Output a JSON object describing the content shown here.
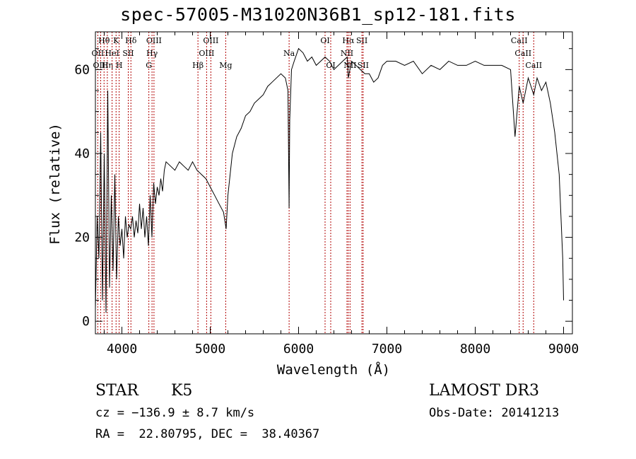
{
  "title": "spec-57005-M31020N36B1_sp12-181.fits",
  "chart_data": {
    "type": "line",
    "xlabel": "Wavelength (Å)",
    "ylabel": "Flux (relative)",
    "xlim": [
      3700,
      9100
    ],
    "ylim": [
      -3,
      69
    ],
    "xticks": [
      4000,
      5000,
      6000,
      7000,
      8000,
      9000
    ],
    "yticks": [
      0,
      20,
      40,
      60
    ],
    "series": [
      {
        "x": [
          3700,
          3720,
          3740,
          3760,
          3780,
          3800,
          3820,
          3840,
          3860,
          3880,
          3900,
          3920,
          3940,
          3960,
          3980,
          4000,
          4020,
          4040,
          4060,
          4080,
          4100,
          4120,
          4140,
          4160,
          4180,
          4200,
          4220,
          4240,
          4260,
          4280,
          4300,
          4320,
          4340,
          4360,
          4380,
          4400,
          4420,
          4440,
          4460,
          4480,
          4500,
          4550,
          4600,
          4650,
          4700,
          4750,
          4800,
          4850,
          4900,
          4950,
          5000,
          5050,
          5100,
          5150,
          5180,
          5200,
          5250,
          5300,
          5350,
          5400,
          5450,
          5500,
          5550,
          5600,
          5650,
          5700,
          5750,
          5800,
          5850,
          5880,
          5893,
          5900,
          5920,
          5950,
          6000,
          6050,
          6100,
          6150,
          6200,
          6250,
          6300,
          6350,
          6400,
          6450,
          6500,
          6550,
          6563,
          6600,
          6650,
          6700,
          6750,
          6800,
          6850,
          6900,
          6950,
          7000,
          7100,
          7200,
          7300,
          7400,
          7500,
          7600,
          7700,
          7800,
          7900,
          8000,
          8100,
          8200,
          8300,
          8400,
          8450,
          8498,
          8542,
          8600,
          8662,
          8700,
          8750,
          8800,
          8850,
          8900,
          8950,
          8970,
          8990,
          9000
        ],
        "y": [
          3,
          25,
          15,
          45,
          5,
          40,
          2,
          55,
          8,
          30,
          12,
          35,
          10,
          25,
          18,
          22,
          15,
          25,
          20,
          23,
          22,
          25,
          20,
          24,
          21,
          28,
          22,
          27,
          20,
          25,
          18,
          30,
          20,
          33,
          28,
          32,
          30,
          34,
          31,
          36,
          38,
          37,
          36,
          38,
          37,
          36,
          38,
          36,
          35,
          34,
          32,
          30,
          28,
          26,
          22,
          30,
          40,
          44,
          46,
          49,
          50,
          52,
          53,
          54,
          56,
          57,
          58,
          59,
          58,
          55,
          27,
          48,
          60,
          62,
          65,
          64,
          62,
          63,
          61,
          62,
          63,
          62,
          60,
          61,
          62,
          63,
          58,
          62,
          61,
          60,
          59,
          59,
          57,
          58,
          61,
          62,
          62,
          61,
          62,
          59,
          61,
          60,
          62,
          61,
          61,
          62,
          61,
          61,
          61,
          60,
          44,
          56,
          52,
          58,
          54,
          58,
          55,
          57,
          52,
          45,
          35,
          25,
          15,
          5
        ]
      }
    ],
    "lines": [
      {
        "label": "Hθ",
        "x": 3798,
        "row": 1
      },
      {
        "label": "OII",
        "x": 3727,
        "row": 2
      },
      {
        "label": "OIII",
        "x": 3760,
        "row": 3
      },
      {
        "label": "Hη",
        "x": 3835,
        "row": 3
      },
      {
        "label": "HeI",
        "x": 3889,
        "row": 2
      },
      {
        "label": "K",
        "x": 3934,
        "row": 1
      },
      {
        "label": "H",
        "x": 3969,
        "row": 3
      },
      {
        "label": "SII",
        "x": 4072,
        "row": 2
      },
      {
        "label": "Hδ",
        "x": 4102,
        "row": 1
      },
      {
        "label": "OIII",
        "x": 4363,
        "row": 1
      },
      {
        "label": "Hγ",
        "x": 4341,
        "row": 2
      },
      {
        "label": "G",
        "x": 4305,
        "row": 3
      },
      {
        "label": "Hβ",
        "x": 4861,
        "row": 3
      },
      {
        "label": "OIII",
        "x": 5007,
        "row": 1
      },
      {
        "label": "OIII",
        "x": 4959,
        "row": 2
      },
      {
        "label": "Mg",
        "x": 5175,
        "row": 3
      },
      {
        "label": "Na",
        "x": 5893,
        "row": 2
      },
      {
        "label": "OI",
        "x": 6300,
        "row": 1
      },
      {
        "label": "OI",
        "x": 6364,
        "row": 3
      },
      {
        "label": "Hα",
        "x": 6563,
        "row": 1
      },
      {
        "label": "NII",
        "x": 6548,
        "row": 2
      },
      {
        "label": "NII",
        "x": 6583,
        "row": 3
      },
      {
        "label": "SII",
        "x": 6717,
        "row": 1
      },
      {
        "label": "SII",
        "x": 6731,
        "row": 3
      },
      {
        "label": "CaII",
        "x": 8498,
        "row": 1
      },
      {
        "label": "CaII",
        "x": 8542,
        "row": 2
      },
      {
        "label": "CaII",
        "x": 8662,
        "row": 3
      }
    ]
  },
  "info": {
    "class": "STAR",
    "subclass": "K5",
    "survey": "LAMOST DR3",
    "cz": "cz = −136.9 ± 8.7 km/s",
    "obs_date": "Obs-Date: 20141213",
    "coords": "RA =  22.80795, DEC =  38.40367"
  },
  "colors": {
    "line_marker": "#b00000",
    "spectrum": "#000000"
  }
}
